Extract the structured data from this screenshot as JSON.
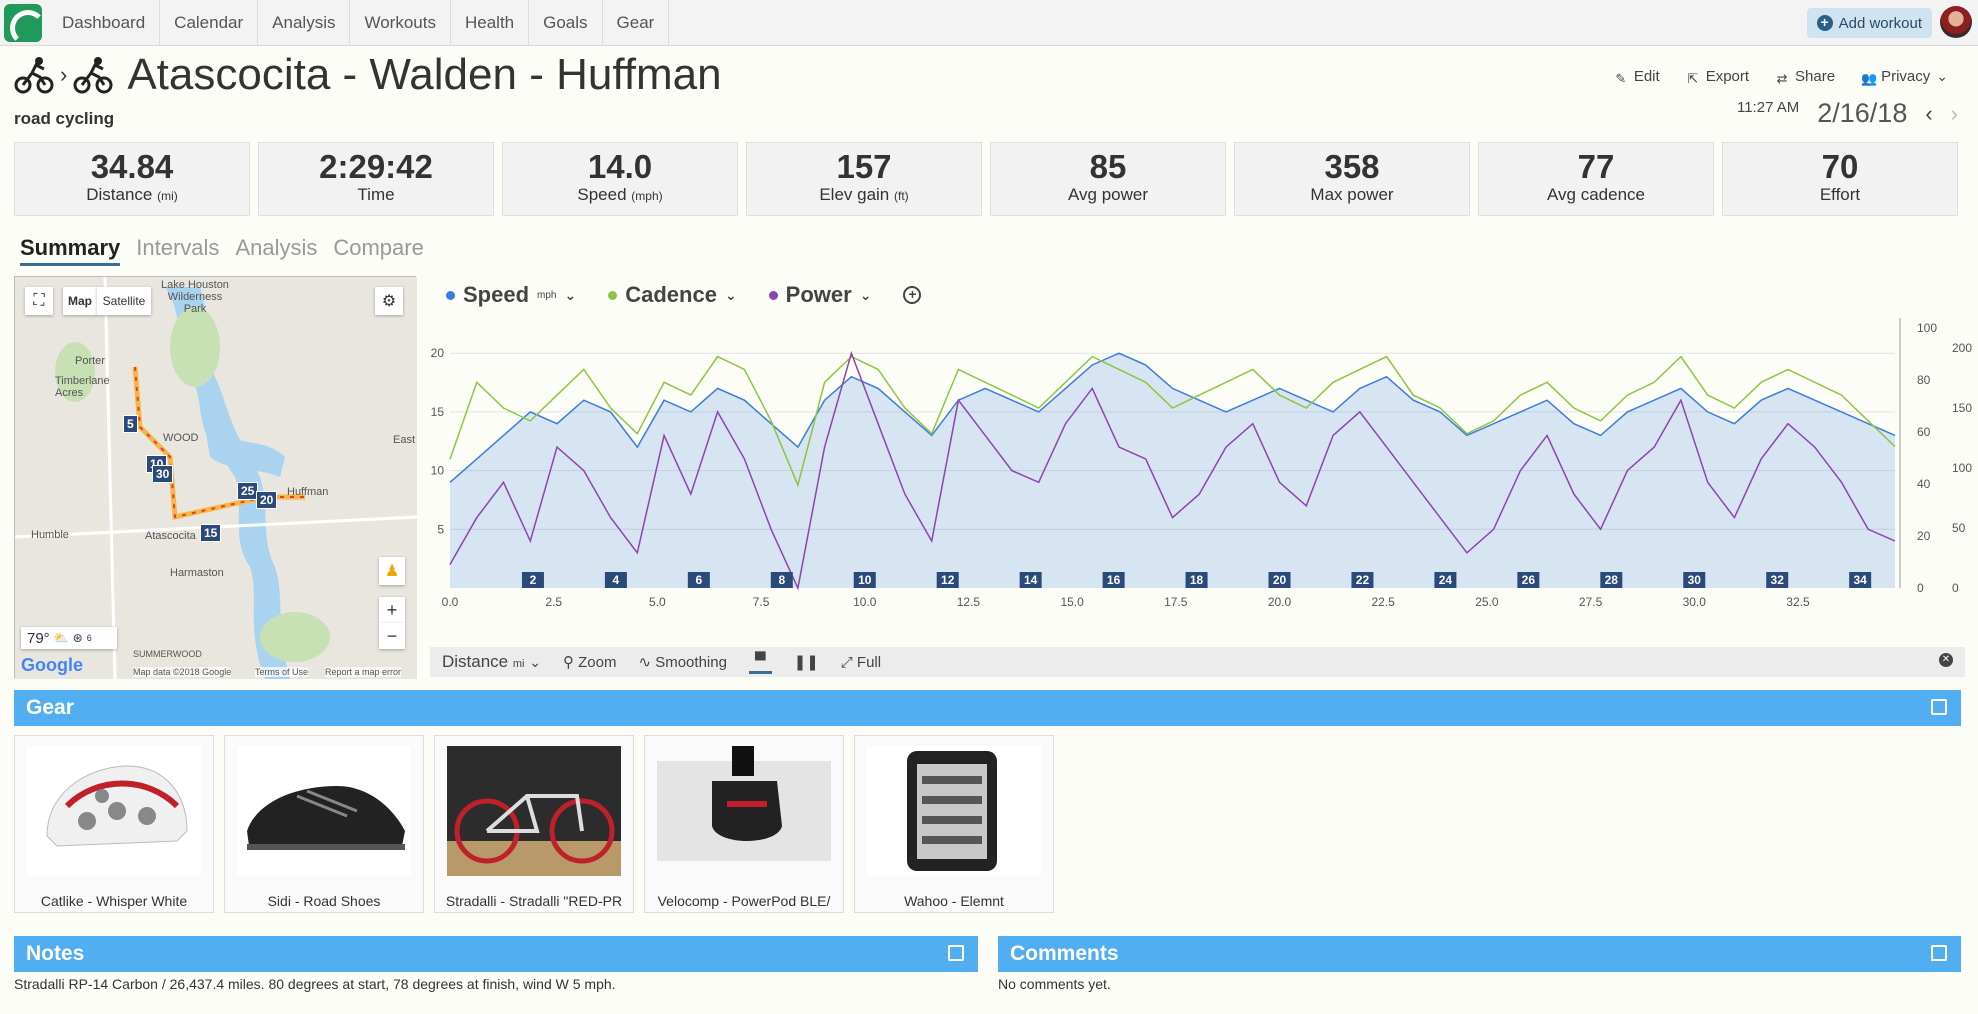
{
  "nav": {
    "items": [
      "Dashboard",
      "Calendar",
      "Analysis",
      "Workouts",
      "Health",
      "Goals",
      "Gear"
    ],
    "add_workout": "Add workout"
  },
  "header": {
    "title": "Atascocita - Walden - Huffman",
    "subtitle": "road cycling",
    "actions": [
      "Edit",
      "Export",
      "Share",
      "Privacy"
    ],
    "time": "11:27 AM",
    "date": "2/16/18"
  },
  "stats": [
    {
      "value": "34.84",
      "label": "Distance",
      "unit": "(mi)"
    },
    {
      "value": "2:29:42",
      "label": "Time",
      "unit": ""
    },
    {
      "value": "14.0",
      "label": "Speed",
      "unit": "(mph)"
    },
    {
      "value": "157",
      "label": "Elev gain",
      "unit": "(ft)"
    },
    {
      "value": "85",
      "label": "Avg power",
      "unit": ""
    },
    {
      "value": "358",
      "label": "Max power",
      "unit": ""
    },
    {
      "value": "77",
      "label": "Avg cadence",
      "unit": ""
    },
    {
      "value": "70",
      "label": "Effort",
      "unit": ""
    }
  ],
  "tabs": [
    "Summary",
    "Intervals",
    "Analysis",
    "Compare"
  ],
  "map": {
    "type_buttons": [
      "Map",
      "Satellite"
    ],
    "labels": [
      "Lake Houston Wilderness Park",
      "Porter",
      "Timberlane Acres",
      "WOOD",
      "East",
      "Huffman",
      "Humble",
      "Atascocita",
      "Harmaston",
      "SUMMERWOOD"
    ],
    "markers": [
      "5",
      "10",
      "30",
      "25",
      "20",
      "15"
    ],
    "weather_temp": "79°",
    "wind": "6",
    "attribution": [
      "Map data ©2018 Google",
      "Terms of Use",
      "Report a map error"
    ],
    "logo": "Google"
  },
  "chart_legend": [
    {
      "name": "Speed",
      "unit": "mph",
      "color": "#3b7ddd"
    },
    {
      "name": "Cadence",
      "unit": "",
      "color": "#8cc63f"
    },
    {
      "name": "Power",
      "unit": "",
      "color": "#8e44ad"
    }
  ],
  "chart_data": {
    "type": "line",
    "x_label": "Distance",
    "x_unit": "mi",
    "x_ticks": [
      "0.0",
      "2.5",
      "5.0",
      "7.5",
      "10.0",
      "12.5",
      "15.0",
      "17.5",
      "20.0",
      "22.5",
      "25.0",
      "27.5",
      "30.0",
      "32.5"
    ],
    "y_left_ticks": [
      "5",
      "10",
      "15",
      "20"
    ],
    "y_right1_ticks": [
      "0",
      "20",
      "40",
      "60",
      "80",
      "100"
    ],
    "y_right2_ticks": [
      "0",
      "50",
      "100",
      "150",
      "200"
    ],
    "xlim": [
      0,
      34.84
    ],
    "mile_markers": [
      "2",
      "4",
      "6",
      "8",
      "10",
      "12",
      "14",
      "16",
      "18",
      "20",
      "22",
      "24",
      "26",
      "28",
      "30",
      "32",
      "34"
    ],
    "series": [
      {
        "name": "Speed",
        "axis": "mph",
        "values": [
          9,
          11,
          13,
          15,
          14,
          16,
          15,
          12,
          16,
          15,
          17,
          16,
          14,
          12,
          16,
          18,
          17,
          15,
          13,
          16,
          17,
          16,
          15,
          17,
          19,
          20,
          19,
          17,
          16,
          15,
          16,
          17,
          16,
          15,
          17,
          18,
          16,
          15,
          13,
          14,
          15,
          16,
          14,
          13,
          15,
          16,
          17,
          15,
          14,
          16,
          17,
          16,
          15,
          14,
          13
        ]
      },
      {
        "name": "Cadence",
        "axis": "rpm",
        "values": [
          50,
          80,
          70,
          65,
          75,
          85,
          70,
          60,
          80,
          75,
          90,
          85,
          65,
          40,
          80,
          90,
          85,
          70,
          60,
          85,
          80,
          75,
          70,
          80,
          90,
          85,
          80,
          70,
          75,
          80,
          85,
          75,
          70,
          80,
          85,
          90,
          75,
          70,
          60,
          65,
          75,
          80,
          70,
          65,
          75,
          80,
          90,
          75,
          70,
          80,
          85,
          80,
          75,
          65,
          55
        ]
      },
      {
        "name": "Power",
        "axis": "W",
        "values": [
          20,
          60,
          90,
          40,
          120,
          100,
          60,
          30,
          130,
          80,
          150,
          110,
          50,
          0,
          120,
          200,
          140,
          80,
          40,
          160,
          130,
          100,
          90,
          140,
          170,
          120,
          110,
          60,
          80,
          120,
          140,
          90,
          70,
          130,
          150,
          120,
          90,
          60,
          30,
          50,
          100,
          130,
          80,
          50,
          100,
          120,
          160,
          90,
          60,
          110,
          140,
          120,
          90,
          50,
          40
        ]
      }
    ]
  },
  "chart_toolbar": {
    "axis_select": "Distance",
    "axis_unit": "mi",
    "zoom": "Zoom",
    "smoothing": "Smoothing",
    "full": "Full"
  },
  "gear": {
    "title": "Gear",
    "items": [
      {
        "name": "Catlike - Whisper White",
        "icon": "helmet"
      },
      {
        "name": "Sidi - Road Shoes",
        "icon": "shoe"
      },
      {
        "name": "Stradalli - Stradalli \"RED-PR",
        "icon": "bike"
      },
      {
        "name": "Velocomp - PowerPod BLE/",
        "icon": "powerpod"
      },
      {
        "name": "Wahoo - Elemnt",
        "icon": "gps-computer"
      }
    ]
  },
  "notes": {
    "title": "Notes",
    "text": "Stradalli RP-14 Carbon / 26,437.4 miles. 80 degrees at start, 78 degrees at finish, wind W 5 mph."
  },
  "comments": {
    "title": "Comments",
    "text": "No comments yet."
  }
}
